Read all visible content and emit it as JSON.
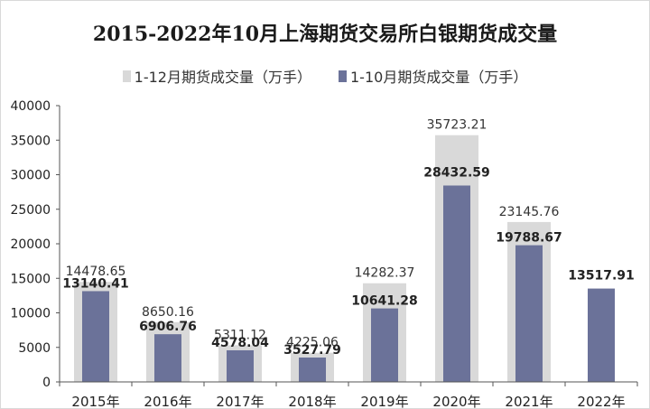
{
  "chart_data": {
    "type": "bar",
    "title": "2015-2022年10月上海期货交易所白银期货成交量",
    "categories": [
      "2015年",
      "2016年",
      "2017年",
      "2018年",
      "2019年",
      "2020年",
      "2021年",
      "2022年"
    ],
    "series": [
      {
        "name": "1-12月期货成交量（万手）",
        "values": [
          14478.65,
          8650.16,
          5311.12,
          4225.06,
          14282.37,
          35723.21,
          23145.76,
          null
        ],
        "color": "#d9d9d9"
      },
      {
        "name": "1-10月期货成交量（万手）",
        "values": [
          13140.41,
          6906.76,
          4578.04,
          3527.79,
          10641.28,
          28432.59,
          19788.67,
          13517.91
        ],
        "color": "#6b7299"
      }
    ],
    "ylim": [
      0,
      40000
    ],
    "yticks": [
      0,
      5000,
      10000,
      15000,
      20000,
      25000,
      30000,
      35000,
      40000
    ],
    "grid": false,
    "legend": "top-center"
  }
}
